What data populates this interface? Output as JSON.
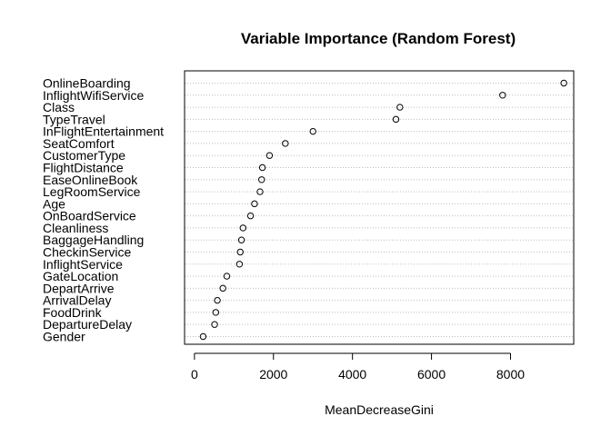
{
  "chart_data": {
    "type": "scatter",
    "title": "Variable Importance (Random Forest)",
    "xlabel": "MeanDecreaseGini",
    "ylabel": "",
    "xlim": [
      -250,
      9600
    ],
    "xticks": [
      0,
      2000,
      4000,
      6000,
      8000
    ],
    "grid": "dotted horizontal",
    "categories": [
      "OnlineBoarding",
      "InflightWifiService",
      "Class",
      "TypeTravel",
      "InFlightEntertainment",
      "SeatComfort",
      "CustomerType",
      "FlightDistance",
      "EaseOnlineBook",
      "LegRoomService",
      "Age",
      "OnBoardService",
      "Cleanliness",
      "BaggageHandling",
      "CheckinService",
      "InflightService",
      "GateLocation",
      "DepartArrive",
      "ArrivalDelay",
      "FoodDrink",
      "DepartureDelay",
      "Gender"
    ],
    "values": [
      9350,
      7800,
      5200,
      5100,
      3000,
      2300,
      1900,
      1720,
      1700,
      1660,
      1520,
      1420,
      1230,
      1190,
      1160,
      1140,
      820,
      720,
      580,
      540,
      510,
      220
    ]
  }
}
